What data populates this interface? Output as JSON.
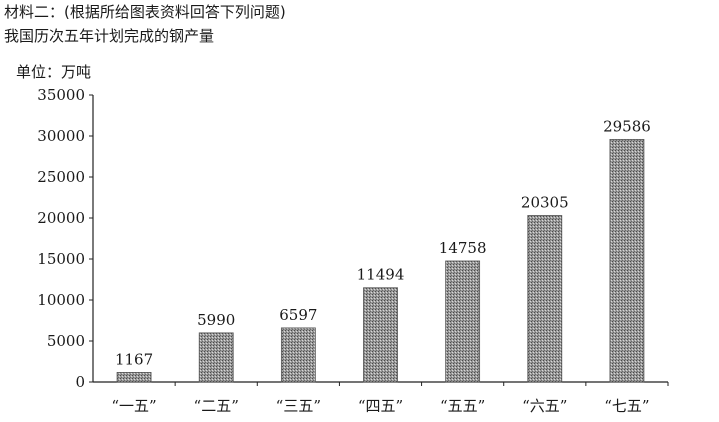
{
  "header": {
    "line1": "材料二：(根据所给图表资料回答下列问题)",
    "line2": "我国历次五年计划完成的钢产量"
  },
  "chart_data": {
    "type": "bar",
    "unit_label": "单位：万吨",
    "categories": [
      "“一五”",
      "“二五”",
      "“三五”",
      "“四五”",
      "“五五”",
      "“六五”",
      "“七五”"
    ],
    "values": [
      1167,
      5990,
      6597,
      11494,
      14758,
      20305,
      29586
    ],
    "yticks": [
      0,
      5000,
      10000,
      15000,
      20000,
      25000,
      30000,
      35000
    ],
    "ylim": [
      0,
      35000
    ],
    "bar_color": "#8c8c8c",
    "grid": false
  }
}
